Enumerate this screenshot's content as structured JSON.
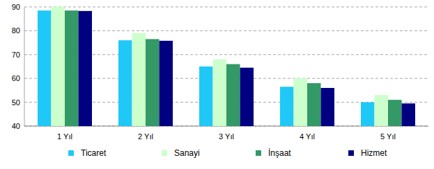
{
  "chart_data": {
    "type": "bar",
    "categories": [
      "1 Yıl",
      "2 Yıl",
      "3 Yıl",
      "4 Yıl",
      "5 Yıl"
    ],
    "series": [
      {
        "name": "Ticaret",
        "color": "#1fc8f7",
        "values": [
          88.5,
          76,
          65,
          56.5,
          50
        ]
      },
      {
        "name": "Sanayi",
        "color": "#ccffcc",
        "values": [
          90,
          79,
          68,
          60,
          53
        ]
      },
      {
        "name": "İnşaat",
        "color": "#339966",
        "values": [
          88.5,
          76.5,
          66,
          58,
          51
        ]
      },
      {
        "name": "Hizmet",
        "color": "#000080",
        "values": [
          88.3,
          75.8,
          64.5,
          56,
          49.5
        ]
      }
    ],
    "ylim": [
      40,
      90
    ],
    "yticks": [
      40,
      50,
      60,
      70,
      80,
      90
    ],
    "grid": true,
    "legend": "bottom"
  }
}
